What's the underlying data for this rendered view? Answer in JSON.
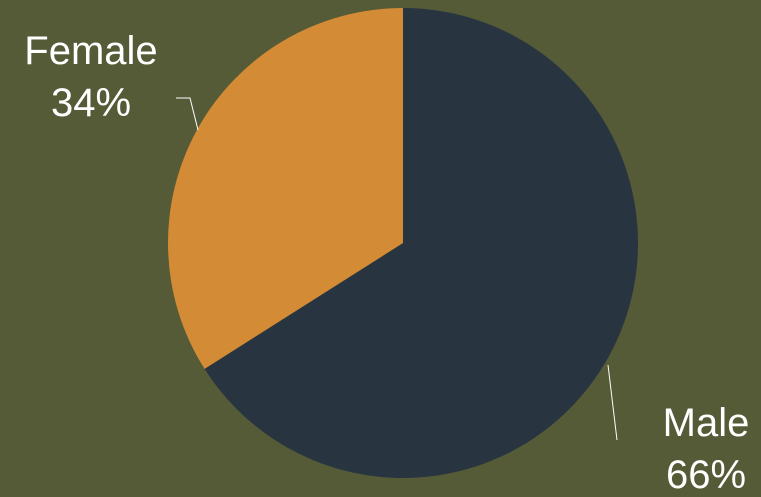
{
  "background_color": "#555a37",
  "chart_data": {
    "type": "pie",
    "title": "",
    "slices": [
      {
        "name": "Male",
        "value": 66,
        "value_label": "66%",
        "color": "#283540"
      },
      {
        "name": "Female",
        "value": 34,
        "value_label": "34%",
        "color": "#d38b36"
      }
    ],
    "start": "top",
    "direction": "clockwise",
    "legend": "none",
    "data_labels": "outside, category name and percentage, with leader lines"
  }
}
